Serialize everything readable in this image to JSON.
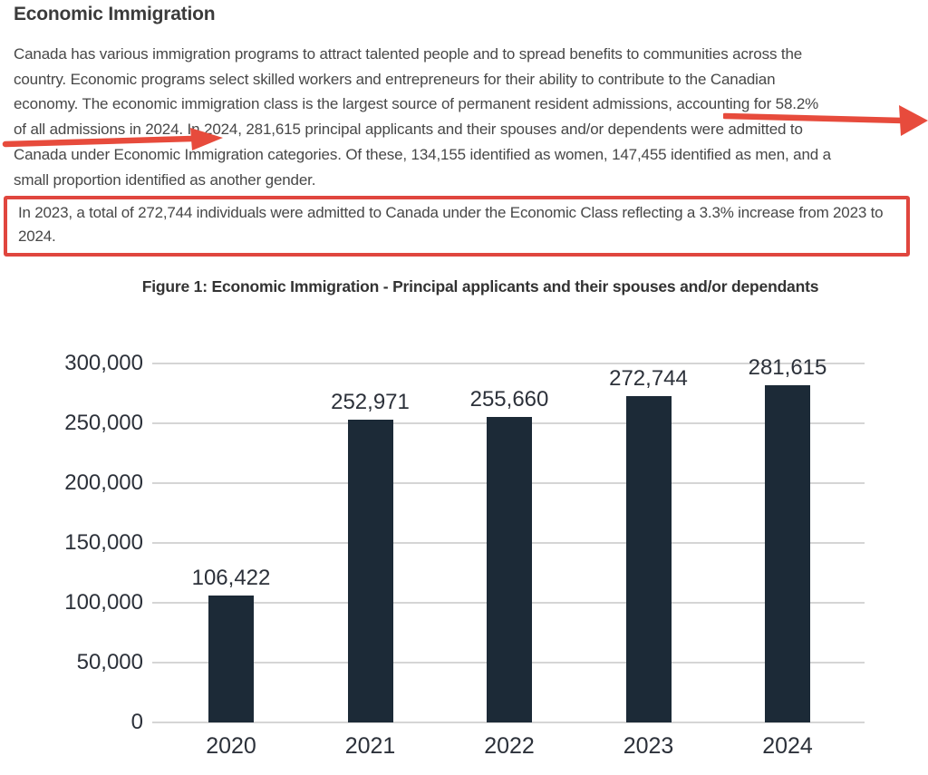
{
  "page": {
    "title": "Economic Immigration",
    "paragraph_lines": [
      "Canada has various immigration programs to attract talented people and to spread benefits to communities across the",
      "country. Economic programs select skilled workers and entrepreneurs for their ability to contribute to the Canadian",
      "economy. The economic immigration class is the largest source of permanent resident admissions, accounting for 58.2%",
      "of all admissions in 2024. In 2024, 281,615 principal applicants and their spouses and/or dependents were admitted to",
      "Canada under Economic Immigration categories. Of these, 134,155 identified as women, 147,455 identified as men, and a",
      "small proportion identified as another gender."
    ],
    "highlight_note": "In 2023, a total of 272,744 individuals were admitted to Canada under the Economic Class reflecting a 3.3% increase from 2023 to 2024.",
    "figure_caption": "Figure 1: Economic Immigration - Principal applicants and their spouses and/or dependants"
  },
  "theme": {
    "annotation_red": "#e74b3c",
    "box_border_red": "#e0463e",
    "bar_color": "#1c2a37",
    "gridline_color": "#d5d5d5",
    "chart_text_color": "#2c313a"
  },
  "chart_data": {
    "type": "bar",
    "title": "Figure 1: Economic Immigration - Principal applicants and their spouses and/or dependants",
    "categories": [
      "2020",
      "2021",
      "2022",
      "2023",
      "2024"
    ],
    "values": [
      106422,
      252971,
      255660,
      272744,
      281615
    ],
    "value_labels": [
      "106,422",
      "252,971",
      "255,660",
      "272,744",
      "281,615"
    ],
    "yticks": [
      300000,
      250000,
      200000,
      150000,
      100000,
      50000,
      0
    ],
    "ytick_labels": [
      "300,000",
      "250,000",
      "200,000",
      "150,000",
      "100,000",
      "50,000",
      "0"
    ],
    "ylim": [
      0,
      300000
    ],
    "grid": true,
    "legend": "none",
    "xlabel": "",
    "ylabel": ""
  }
}
